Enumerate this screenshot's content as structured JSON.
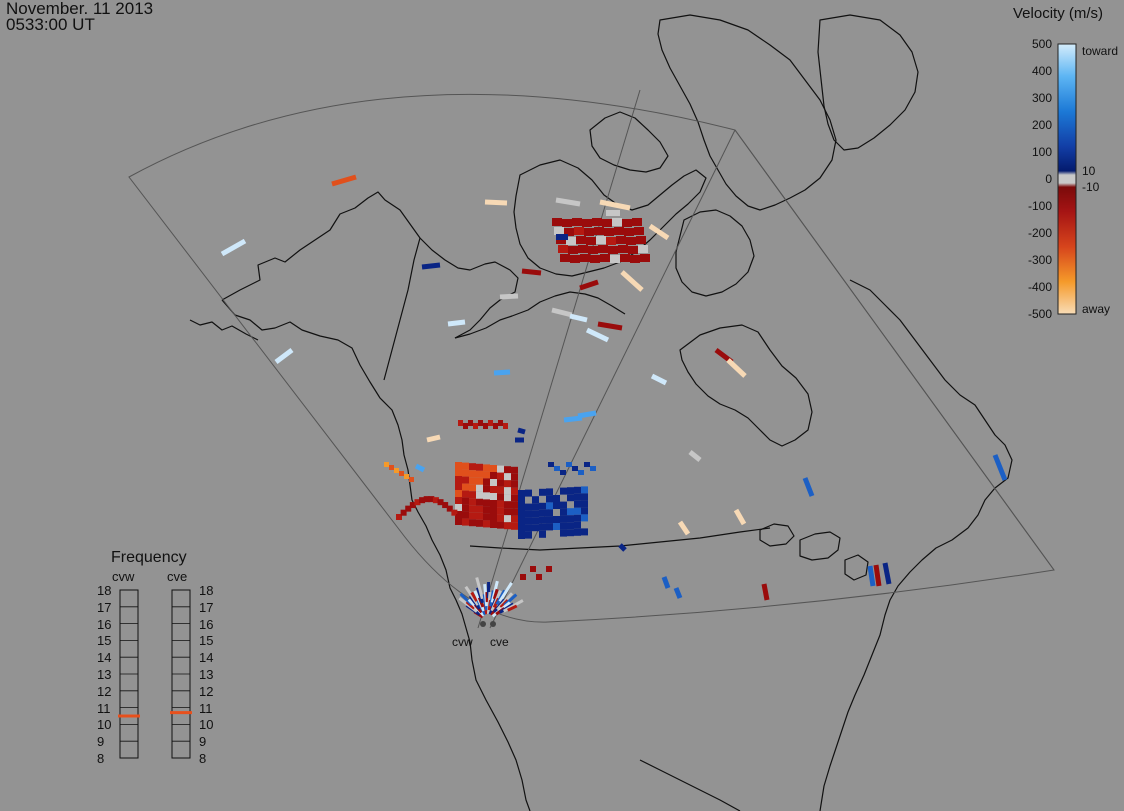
{
  "header": {
    "date": "November. 11 2013",
    "time": "0533:00 UT"
  },
  "colorbar": {
    "title": "Velocity (m/s)",
    "toward_label": "toward",
    "away_label": "away",
    "ticks": [
      "500",
      "400",
      "300",
      "200",
      "100",
      "0",
      "-100",
      "-200",
      "-300",
      "-400",
      "-500"
    ],
    "near_zero_pos": "10",
    "near_zero_neg": "-10"
  },
  "frequency_panel": {
    "title": "Frequency",
    "left_label": "cvw",
    "right_label": "cve",
    "scale": [
      "18",
      "17",
      "16",
      "15",
      "14",
      "13",
      "12",
      "11",
      "10",
      "9",
      "8"
    ],
    "cvw_value_mhz": 10.5,
    "cve_value_mhz": 10.7,
    "marker_color": "#e8501c"
  },
  "radars": [
    {
      "name": "cvw"
    },
    {
      "name": "cve"
    }
  ],
  "colors": {
    "background": "#939393",
    "coastline": "#111111",
    "fov": "#555555"
  }
}
